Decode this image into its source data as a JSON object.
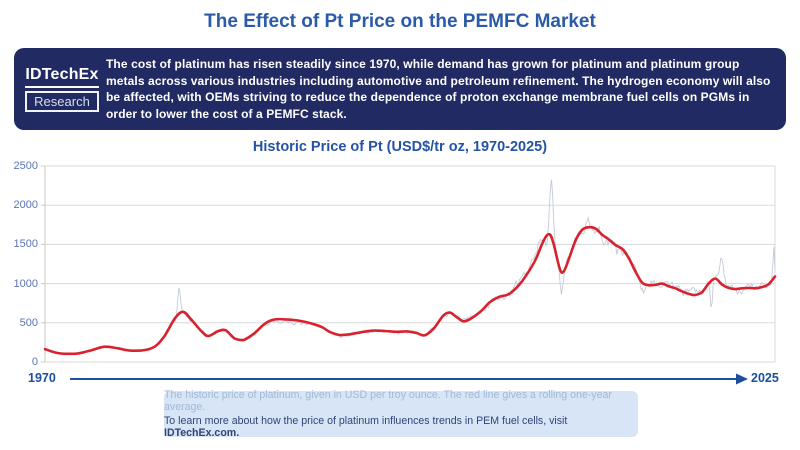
{
  "page": {
    "title": "The Effect of Pt Price on the PEMFC Market"
  },
  "banner": {
    "logo": {
      "brand": "IDTechEx",
      "sub": "Research"
    },
    "text": "The cost of platinum has risen steadily since 1970, while demand has grown for platinum and platinum group metals across various industries including automotive and petroleum refinement. The hydrogen economy will also be affected, with OEMs striving to reduce the dependence of proton exchange membrane fuel cells on PGMs in order to lower the cost of a PEMFC stack."
  },
  "chart": {
    "title": "Historic Price of Pt (USD$/tr oz, 1970-2025)"
  },
  "chart_data": {
    "type": "line",
    "title": "Historic Price of Pt (USD$/tr oz, 1970-2025)",
    "xlabel": "",
    "ylabel": "",
    "x_range": [
      1970,
      2025
    ],
    "ylim": [
      0,
      2500
    ],
    "y_ticks": [
      0,
      500,
      1000,
      1500,
      2000,
      2500
    ],
    "grid": true,
    "legend": "none",
    "x_axis_labels": {
      "start": "1970",
      "end": "2025"
    },
    "series": [
      {
        "name": "rolling one-year average (red line)",
        "color": "#d8232f",
        "x": [
          1970,
          1970.8,
          1971.5,
          1972.5,
          1973.5,
          1974.5,
          1975.5,
          1976.3,
          1977.5,
          1978.3,
          1979,
          1979.8,
          1980.4,
          1981,
          1981.8,
          1982.3,
          1983,
          1983.6,
          1984.3,
          1985,
          1985.8,
          1986.5,
          1987.2,
          1988,
          1989,
          1990,
          1990.8,
          1991.5,
          1992.2,
          1993,
          1994,
          1994.8,
          1995.6,
          1996.5,
          1997.3,
          1998,
          1998.6,
          1999.3,
          2000,
          2000.5,
          2001,
          2001.5,
          2002,
          2002.8,
          2003.5,
          2004.2,
          2005,
          2005.8,
          2006.5,
          2007,
          2007.6,
          2008,
          2008.3,
          2008.8,
          2009.1,
          2009.5,
          2010,
          2010.5,
          2011,
          2011.5,
          2012,
          2012.5,
          2013,
          2013.5,
          2014,
          2014.5,
          2015,
          2015.5,
          2016,
          2016.5,
          2017,
          2017.5,
          2018,
          2018.6,
          2019,
          2019.5,
          2020,
          2020.5,
          2021,
          2021.5,
          2022,
          2022.5,
          2023,
          2023.5,
          2024,
          2024.5,
          2025
        ],
        "values": [
          165,
          120,
          105,
          110,
          150,
          195,
          175,
          148,
          152,
          200,
          330,
          560,
          640,
          545,
          390,
          330,
          390,
          405,
          300,
          285,
          370,
          480,
          540,
          545,
          530,
          495,
          450,
          380,
          345,
          355,
          385,
          400,
          395,
          385,
          390,
          370,
          340,
          430,
          590,
          630,
          575,
          520,
          545,
          640,
          760,
          830,
          870,
          1000,
          1170,
          1320,
          1560,
          1630,
          1520,
          1180,
          1160,
          1330,
          1560,
          1690,
          1720,
          1700,
          1620,
          1560,
          1490,
          1440,
          1320,
          1150,
          1010,
          980,
          985,
          1000,
          965,
          940,
          900,
          865,
          855,
          890,
          1000,
          1065,
          990,
          945,
          930,
          940,
          945,
          940,
          955,
          990,
          1090
        ]
      },
      {
        "name": "raw monthly price (grey line)",
        "color": "#c3cad8",
        "style": "noisy-around-average",
        "anomalies": [
          {
            "year": 1980.1,
            "value": 1000,
            "spread": 0.1
          },
          {
            "year": 2008.15,
            "value": 2270,
            "spread": 0.12
          },
          {
            "year": 2008.9,
            "value": 820,
            "spread": 0.1
          },
          {
            "year": 2020.2,
            "value": 650,
            "spread": 0.06
          },
          {
            "year": 2021.0,
            "value": 1280,
            "spread": 0.12
          },
          {
            "year": 2024.9,
            "value": 1480,
            "spread": 0.05
          }
        ]
      }
    ]
  },
  "footer": {
    "line1": "The historic price of platinum, given in USD per troy ounce. The red line gives a rolling one-year average.",
    "line2_prefix": "To learn more about how the price of platinum influences trends in PEM fuel cells, visit ",
    "line2_link": "IDTechEx.com."
  },
  "colors": {
    "title_blue": "#2b5aa8",
    "chart_title_blue": "#2553a4",
    "banner_bg": "#212a63",
    "banner_text": "#ffffff",
    "gridline": "#dadada",
    "axis_edge": "#c9c9c9",
    "tick_label_blue": "#5b74b8",
    "x_axis_blue": "#1d4fa1",
    "average_line_red": "#d8232f",
    "raw_line_grey": "#c3cad8",
    "caption_bg": "#d7e5f6",
    "caption_light": "#a2b8d8",
    "caption_dark": "#2f4578"
  }
}
